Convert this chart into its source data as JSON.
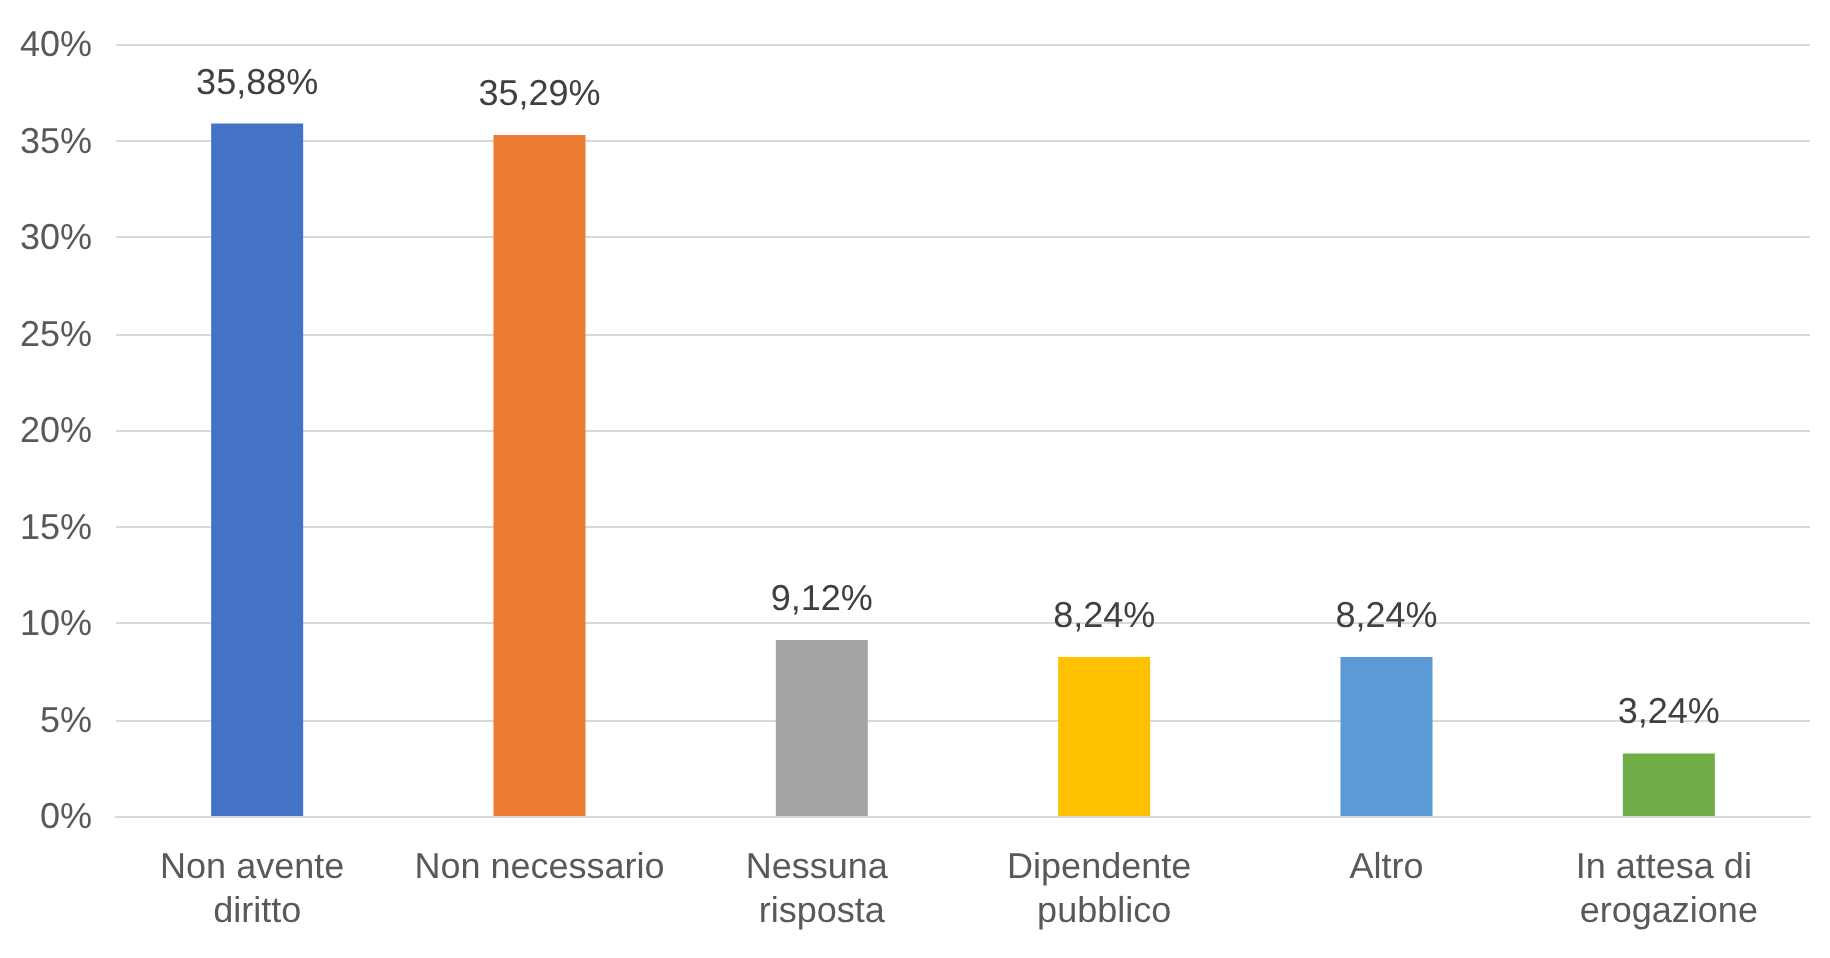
{
  "chart_data": {
    "type": "bar",
    "categories": [
      "Non avente diritto",
      "Non necessario",
      "Nessuna risposta",
      "Dipendente pubblico",
      "Altro",
      "In attesa di erogazione"
    ],
    "values": [
      35.88,
      35.29,
      9.12,
      8.24,
      8.24,
      3.24
    ],
    "colors": [
      "#4472c4",
      "#ed7d31",
      "#a5a5a5",
      "#ffc000",
      "#5b9bd5",
      "#70ad47"
    ],
    "value_labels": [
      "35,88%",
      "35,29%",
      "9,12%",
      "8,24%",
      "8,24%",
      "3,24%"
    ],
    "ylim": [
      0,
      40
    ],
    "yticks": [
      {
        "value": 0,
        "label": "0%"
      },
      {
        "value": 5,
        "label": "5%"
      },
      {
        "value": 10,
        "label": "10%"
      },
      {
        "value": 15,
        "label": "15%"
      },
      {
        "value": 20,
        "label": "20%"
      },
      {
        "value": 25,
        "label": "25%"
      },
      {
        "value": 30,
        "label": "30%"
      },
      {
        "value": 35,
        "label": "35%"
      },
      {
        "value": 40,
        "label": "40%"
      }
    ],
    "grid": "y"
  }
}
